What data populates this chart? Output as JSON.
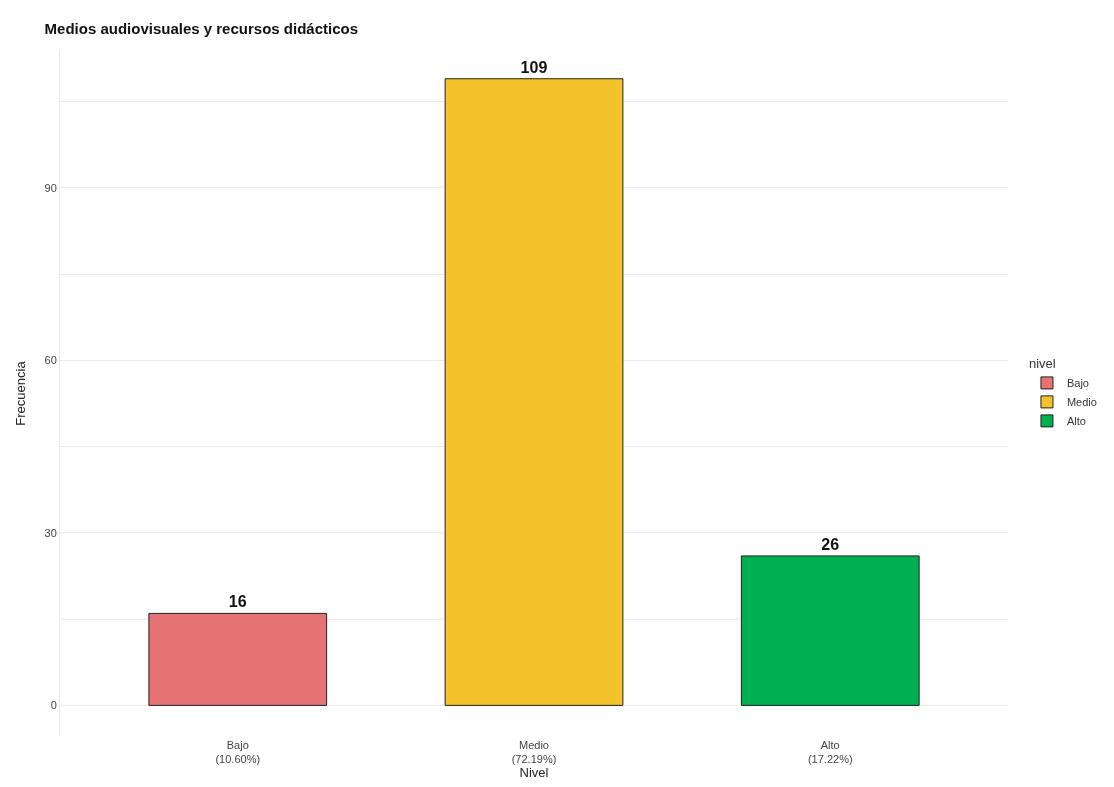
{
  "chart_data": {
    "type": "bar",
    "title": "Medios audiovisuales y recursos didácticos",
    "xlabel": "Nivel",
    "ylabel": "Frecuencia",
    "legend_title": "nivel",
    "categories": [
      "Bajo\n(10.60%)",
      "Medio\n(72.19%)",
      "Alto\n(17.22%)"
    ],
    "series": [
      {
        "name": "Bajo",
        "color": "#e57373",
        "values": [
          16,
          null,
          null
        ]
      },
      {
        "name": "Medio",
        "color": "#f4c22b",
        "values": [
          null,
          109,
          null
        ]
      },
      {
        "name": "Alto",
        "color": "#00b050",
        "values": [
          null,
          null,
          26
        ]
      }
    ],
    "ylim": [
      -5.5,
      114
    ],
    "yticks": [
      0,
      {
        "value": 15,
        "label": null
      },
      30,
      {
        "value": 45,
        "label": null
      },
      60,
      {
        "value": 75,
        "label": null
      },
      90,
      {
        "value": 105,
        "label": null
      }
    ],
    "grid": "y",
    "legend": "right",
    "data_labels": true
  }
}
